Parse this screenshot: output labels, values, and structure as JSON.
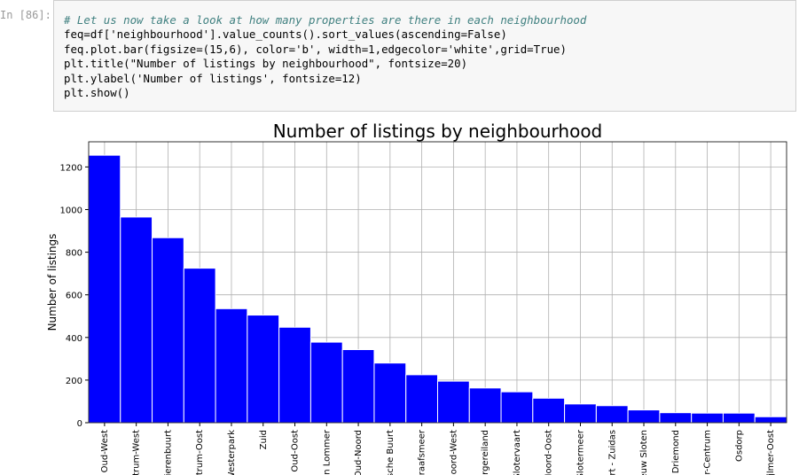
{
  "cell": {
    "prompt": "In [86]:",
    "code": [
      "# Let us now take a look at how many properties are there in each neighbourhood",
      "feq=df['neighbourhood'].value_counts().sort_values(ascending=False)",
      "feq.plot.bar(figsize=(15,6), color='b', width=1,edgecolor='white',grid=True)",
      "plt.title(\"Number of listings by neighbourhood\", fontsize=20)",
      "plt.ylabel('Number of listings', fontsize=12)",
      "plt.show()"
    ]
  },
  "chart_data": {
    "type": "bar",
    "title": "Number of listings by neighbourhood",
    "y_label": "Number of listings",
    "categories": [
      "- Oud-West",
      "ntrum-West",
      "rierenbuurt",
      "ntrum-Oost",
      "Westerpark",
      "Zuid",
      "Oud-Oost",
      "en Lommer",
      "Oud-Noord",
      "sche Buurt",
      "graafsmeer",
      "Noord-West",
      "urgereiland",
      "Slotervaart",
      "Noord-Oost",
      "Slotermeer",
      "ert - Zuidas",
      "euw Sloten",
      "- Driemond",
      "er-Centrum",
      "Osdorp",
      "jlmer-Oost"
    ],
    "values": [
      1255,
      965,
      868,
      725,
      535,
      505,
      448,
      378,
      343,
      280,
      225,
      195,
      163,
      145,
      115,
      88,
      80,
      60,
      47,
      45,
      45,
      28
    ],
    "color": "#0000ff",
    "edgecolor": "#ffffff",
    "ylim": [
      0,
      1318
    ],
    "yticks": [
      0,
      200,
      400,
      600,
      800,
      1000,
      1200
    ],
    "grid": true
  }
}
